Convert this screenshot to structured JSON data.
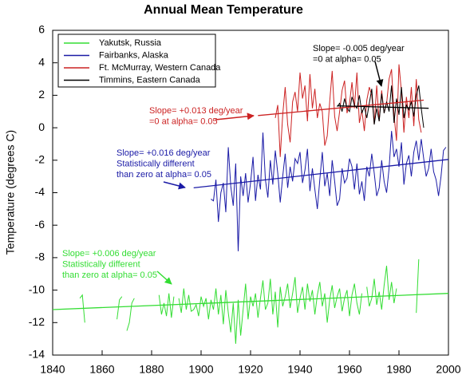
{
  "chart_data": {
    "type": "line",
    "title": "Annual Mean Temperature",
    "y_label": "Temperature (degrees C)",
    "xlim": [
      1840,
      2000
    ],
    "xticks": [
      1840,
      1860,
      1880,
      1900,
      1920,
      1940,
      1960,
      1980,
      2000
    ],
    "ylim": [
      -14,
      6
    ],
    "yticks": [
      -14,
      -12,
      -10,
      -8,
      -6,
      -4,
      -2,
      0,
      2,
      4,
      6
    ],
    "series": [
      {
        "name": "Yakutsk, Russia",
        "color": "#33dd33",
        "x": [
          1851,
          1852,
          1853,
          1860,
          1866,
          1867,
          1868,
          1869,
          1870,
          1871,
          1872,
          1873,
          1880,
          1883,
          1884,
          1885,
          1886,
          1887,
          1888,
          1889,
          1890,
          1891,
          1892,
          1893,
          1894,
          1895,
          1896,
          1897,
          1898,
          1899,
          1900,
          1901,
          1902,
          1903,
          1904,
          1905,
          1906,
          1907,
          1908,
          1909,
          1910,
          1911,
          1912,
          1913,
          1914,
          1915,
          1916,
          1917,
          1918,
          1919,
          1920,
          1921,
          1922,
          1923,
          1924,
          1925,
          1926,
          1927,
          1928,
          1929,
          1930,
          1931,
          1932,
          1933,
          1934,
          1935,
          1936,
          1937,
          1938,
          1939,
          1940,
          1941,
          1942,
          1943,
          1944,
          1945,
          1946,
          1947,
          1948,
          1949,
          1950,
          1951,
          1952,
          1953,
          1954,
          1955,
          1956,
          1957,
          1958,
          1959,
          1960,
          1961,
          1962,
          1963,
          1964,
          1965,
          1966,
          1967,
          1968,
          1969,
          1970,
          1971,
          1972,
          1973,
          1974,
          1975,
          1976,
          1977,
          1978,
          1979,
          1983,
          1987,
          1988
        ],
        "values": [
          -10.5,
          -10.3,
          -12.0,
          null,
          -11.8,
          -10.6,
          -10.4,
          null,
          -12.5,
          -12.0,
          -10.8,
          -10.5,
          null,
          -10.3,
          -11.5,
          -10.8,
          -11.6,
          -10.2,
          -11.7,
          -10.4,
          null,
          -10.5,
          -11.4,
          -9.9,
          -11.2,
          -10.3,
          -11.3,
          -11.2,
          -10.9,
          -11.6,
          -10.4,
          -11.0,
          -10.5,
          -11.8,
          -10.6,
          -11.2,
          -9.9,
          -11.5,
          -10.3,
          -12.1,
          -10.0,
          -11.4,
          -12.6,
          -10.8,
          -13.3,
          -10.6,
          -12.8,
          -11.2,
          -9.6,
          -11.8,
          -10.4,
          -11.0,
          -10.2,
          -11.7,
          -10.5,
          -9.4,
          -11.2,
          -10.8,
          -9.3,
          -11.5,
          -10.1,
          -12.3,
          -9.8,
          -11.0,
          -10.4,
          -9.6,
          -11.1,
          -10.2,
          -9.2,
          -11.4,
          -10.5,
          -9.8,
          -11.2,
          -9.6,
          -10.7,
          -10.0,
          -11.5,
          -10.3,
          -9.5,
          -11.0,
          -10.2,
          -12.0,
          -10.6,
          -9.7,
          -11.1,
          -10.4,
          -9.9,
          -11.3,
          -10.5,
          -10.0,
          -11.6,
          -10.3,
          -9.6,
          -10.8,
          -11.5,
          -10.2,
          null,
          -9.8,
          -11.0,
          -10.5,
          -9.3,
          -10.9,
          -10.1,
          -11.2,
          -9.7,
          -8.5,
          -10.6,
          -9.5,
          -10.8,
          -9.9,
          null,
          -11.4,
          -8.1
        ],
        "trend": {
          "x": [
            1840,
            2000
          ],
          "values": [
            -11.2,
            -10.2
          ]
        }
      },
      {
        "name": "Fairbanks, Alaska",
        "color": "#1a1aa6",
        "x": [
          1904,
          1905,
          1906,
          1907,
          1908,
          1909,
          1910,
          1911,
          1912,
          1913,
          1914,
          1915,
          1916,
          1917,
          1918,
          1919,
          1920,
          1921,
          1922,
          1923,
          1924,
          1925,
          1926,
          1927,
          1928,
          1929,
          1930,
          1931,
          1932,
          1933,
          1934,
          1935,
          1936,
          1937,
          1938,
          1939,
          1940,
          1941,
          1942,
          1943,
          1944,
          1945,
          1946,
          1947,
          1948,
          1949,
          1950,
          1951,
          1952,
          1953,
          1954,
          1955,
          1956,
          1957,
          1958,
          1959,
          1960,
          1961,
          1962,
          1963,
          1964,
          1965,
          1966,
          1967,
          1968,
          1969,
          1970,
          1971,
          1972,
          1973,
          1974,
          1975,
          1976,
          1977,
          1978,
          1979,
          1980,
          1981,
          1982,
          1983,
          1984,
          1985,
          1986,
          1987,
          1988,
          1989,
          1990,
          1991,
          1992,
          1993,
          1994,
          1995,
          1996,
          1997,
          1998,
          1999
        ],
        "values": [
          -4.4,
          -4.5,
          -3.2,
          -5.8,
          -4.0,
          -3.4,
          -5.2,
          -1.2,
          -3.6,
          -4.8,
          -2.2,
          -7.6,
          -3.0,
          -4.2,
          -2.8,
          -4.6,
          -3.4,
          -1.8,
          -4.5,
          -2.9,
          -3.8,
          -0.3,
          -3.2,
          -4.3,
          -2.0,
          -3.5,
          -1.4,
          -2.8,
          -4.6,
          -3.0,
          -1.6,
          -3.7,
          -2.4,
          -3.3,
          -1.9,
          -2.2,
          -1.5,
          -3.4,
          -2.6,
          -1.3,
          -3.9,
          -2.5,
          -3.8,
          -5.0,
          -3.2,
          -1.5,
          -3.6,
          -2.8,
          -4.2,
          -2.0,
          -3.3,
          -4.8,
          -4.4,
          -2.5,
          -3.4,
          -3.1,
          -1.9,
          -2.4,
          -3.8,
          -2.2,
          -4.1,
          -3.3,
          -4.5,
          -2.4,
          -3.0,
          -1.6,
          -2.8,
          -4.2,
          -3.7,
          -2.0,
          -3.3,
          -4.0,
          -2.5,
          -0.2,
          -1.8,
          -1.3,
          -2.4,
          -0.9,
          -3.5,
          -2.2,
          -1.7,
          -3.0,
          -1.5,
          -0.8,
          -2.0,
          -0.7,
          -1.9,
          -3.0,
          -2.5,
          -1.3,
          -2.7,
          -3.2,
          -4.2,
          -3.0,
          -1.4,
          -1.2
        ],
        "trend": {
          "x": [
            1897,
            2000
          ],
          "values": [
            -3.7,
            -1.95
          ]
        }
      },
      {
        "name": "Ft. McMurray, Western Canada",
        "color": "#cc2222",
        "x": [
          1930,
          1931,
          1932,
          1933,
          1934,
          1935,
          1936,
          1937,
          1938,
          1939,
          1940,
          1941,
          1942,
          1943,
          1944,
          1945,
          1946,
          1947,
          1948,
          1949,
          1950,
          1951,
          1952,
          1953,
          1954,
          1955,
          1956,
          1957,
          1958,
          1959,
          1960,
          1961,
          1962,
          1963,
          1964,
          1965,
          1966,
          1967,
          1968,
          1969,
          1970,
          1971,
          1972,
          1973,
          1974,
          1975,
          1976,
          1977,
          1978,
          1979,
          1980,
          1981,
          1982,
          1983,
          1984,
          1985,
          1986,
          1987,
          1988,
          1989
        ],
        "values": [
          0.6,
          1.4,
          -1.8,
          0.8,
          2.5,
          0.2,
          -0.9,
          1.6,
          2.2,
          1.0,
          3.4,
          1.8,
          2.6,
          0.4,
          3.3,
          1.2,
          2.4,
          0.6,
          1.5,
          1.0,
          -1.1,
          -0.5,
          1.6,
          3.5,
          0.7,
          -0.2,
          1.0,
          2.3,
          2.9,
          0.9,
          1.5,
          2.8,
          1.2,
          3.4,
          0.3,
          1.1,
          -0.2,
          1.7,
          2.5,
          2.0,
          0.2,
          2.6,
          0.4,
          2.3,
          0.9,
          1.5,
          3.0,
          3.6,
          0.8,
          -0.8,
          3.9,
          2.2,
          -0.3,
          1.9,
          0.6,
          2.5,
          0.1,
          3.0,
          0.5,
          -0.3
        ],
        "trend": {
          "x": [
            1923,
            1990
          ],
          "values": [
            0.75,
            1.7
          ]
        }
      },
      {
        "name": "Timmins, Eastern Canada",
        "color": "#000000",
        "x": [
          1955,
          1956,
          1957,
          1958,
          1959,
          1960,
          1961,
          1962,
          1963,
          1964,
          1965,
          1966,
          1967,
          1968,
          1969,
          1970,
          1971,
          1972,
          1973,
          1974,
          1975,
          1976,
          1977,
          1978,
          1979,
          1980,
          1981,
          1982,
          1983,
          1984,
          1985,
          1986,
          1987,
          1988,
          1989,
          1990
        ],
        "values": [
          1.3,
          1.5,
          1.0,
          1.8,
          1.2,
          1.0,
          1.9,
          1.4,
          1.2,
          2.0,
          0.9,
          1.3,
          0.6,
          1.5,
          2.4,
          0.2,
          1.2,
          0.4,
          2.1,
          0.9,
          1.6,
          1.0,
          2.6,
          0.3,
          1.8,
          0.8,
          2.5,
          0.6,
          1.4,
          1.1,
          1.6,
          0.7,
          2.0,
          2.6,
          1.2,
          0.0
        ],
        "trend": {
          "x": [
            1955,
            1992
          ],
          "values": [
            1.35,
            1.2
          ]
        }
      }
    ],
    "annotations": [
      {
        "color": "#000000",
        "lines": [
          "Slope= -0.005 deg/year",
          "=0 at alpha= 0.05"
        ]
      },
      {
        "color": "#cc2222",
        "lines": [
          "Slope= +0.013 deg/year",
          "=0 at alpha= 0.05"
        ]
      },
      {
        "color": "#1a1aa6",
        "lines": [
          "Slope= +0.016 deg/year",
          "Statistically different",
          "than zero at alpha= 0.05"
        ]
      },
      {
        "color": "#33dd33",
        "lines": [
          "Slope= +0.006 deg/year",
          "Statistically different",
          "than zero at alpha= 0.05"
        ]
      }
    ]
  }
}
